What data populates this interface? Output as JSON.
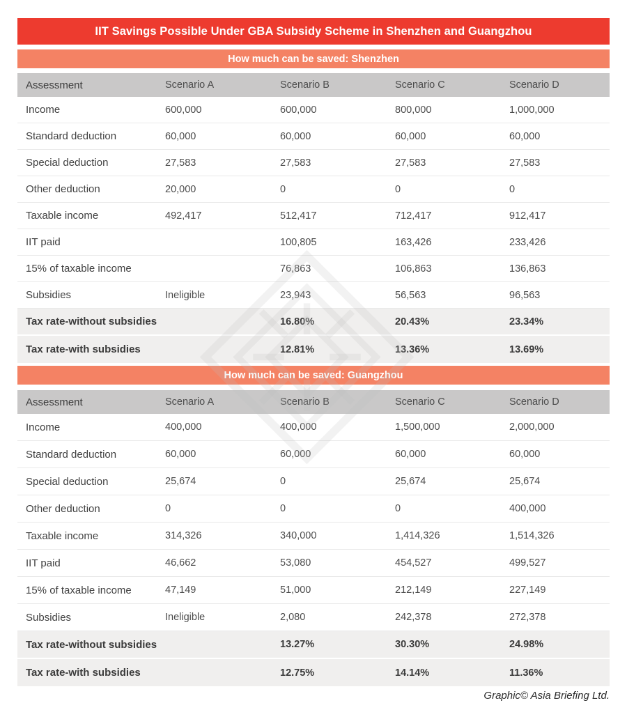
{
  "header": {
    "title": "IIT Savings Possible Under GBA Subsidy Scheme in Shenzhen and Guangzhou"
  },
  "footer": {
    "credit": "Graphic© Asia Briefing Ltd."
  },
  "watermark": {
    "icon": "asia-briefing-knot-watermark"
  },
  "colors": {
    "title_bar": "#ed3b2f",
    "section_bar": "#f48264",
    "header_row": "#c9c8c8",
    "highlight_row": "#f0efee",
    "row_border": "#e9e9e9",
    "text": "#414141"
  },
  "chart_data": [
    {
      "type": "table",
      "title": "How much can be saved: Shenzhen",
      "columns": [
        "Assessment",
        "Scenario A",
        "Scenario B",
        "Scenario C",
        "Scenario D"
      ],
      "rows": [
        {
          "label": "Income",
          "values": [
            "600,000",
            "600,000",
            "800,000",
            "1,000,000"
          ],
          "highlight": false
        },
        {
          "label": "Standard deduction",
          "values": [
            "60,000",
            "60,000",
            "60,000",
            "60,000"
          ],
          "highlight": false
        },
        {
          "label": "Special deduction",
          "values": [
            "27,583",
            "27,583",
            "27,583",
            "27,583"
          ],
          "highlight": false
        },
        {
          "label": "Other deduction",
          "values": [
            "20,000",
            "0",
            "0",
            "0"
          ],
          "highlight": false
        },
        {
          "label": "Taxable income",
          "values": [
            "492,417",
            "512,417",
            "712,417",
            "912,417"
          ],
          "highlight": false
        },
        {
          "label": "IIT paid",
          "values": [
            "",
            "100,805",
            "163,426",
            "233,426"
          ],
          "highlight": false
        },
        {
          "label": "15% of taxable income",
          "values": [
            "",
            "76,863",
            "106,863",
            "136,863"
          ],
          "highlight": false
        },
        {
          "label": "Subsidies",
          "values": [
            "Ineligible",
            "23,943",
            "56,563",
            "96,563"
          ],
          "highlight": false
        },
        {
          "label": "Tax rate-without subsidies",
          "values": [
            "",
            "16.80%",
            "20.43%",
            "23.34%"
          ],
          "highlight": true
        },
        {
          "label": "Tax rate-with subsidies",
          "values": [
            "",
            "12.81%",
            "13.36%",
            "13.69%"
          ],
          "highlight": true
        }
      ]
    },
    {
      "type": "table",
      "title": "How much can be saved: Guangzhou",
      "columns": [
        "Assessment",
        "Scenario A",
        "Scenario B",
        "Scenario C",
        "Scenario D"
      ],
      "rows": [
        {
          "label": "Income",
          "values": [
            "400,000",
            "400,000",
            "1,500,000",
            "2,000,000"
          ],
          "highlight": false
        },
        {
          "label": "Standard deduction",
          "values": [
            "60,000",
            "60,000",
            "60,000",
            "60,000"
          ],
          "highlight": false
        },
        {
          "label": "Special deduction",
          "values": [
            "25,674",
            "0",
            "25,674",
            "25,674"
          ],
          "highlight": false
        },
        {
          "label": "Other deduction",
          "values": [
            "0",
            "0",
            "0",
            "400,000"
          ],
          "highlight": false
        },
        {
          "label": "Taxable income",
          "values": [
            "314,326",
            "340,000",
            "1,414,326",
            "1,514,326"
          ],
          "highlight": false
        },
        {
          "label": "IIT paid",
          "values": [
            "46,662",
            "53,080",
            "454,527",
            "499,527"
          ],
          "highlight": false
        },
        {
          "label": "15% of taxable income",
          "values": [
            "47,149",
            "51,000",
            "212,149",
            "227,149"
          ],
          "highlight": false
        },
        {
          "label": "Subsidies",
          "values": [
            "Ineligible",
            "2,080",
            "242,378",
            "272,378"
          ],
          "highlight": false
        },
        {
          "label": "Tax rate-without subsidies",
          "values": [
            "",
            "13.27%",
            "30.30%",
            "24.98%"
          ],
          "highlight": true
        },
        {
          "label": "Tax rate-with subsidies",
          "values": [
            "",
            "12.75%",
            "14.14%",
            "11.36%"
          ],
          "highlight": true
        }
      ]
    }
  ]
}
